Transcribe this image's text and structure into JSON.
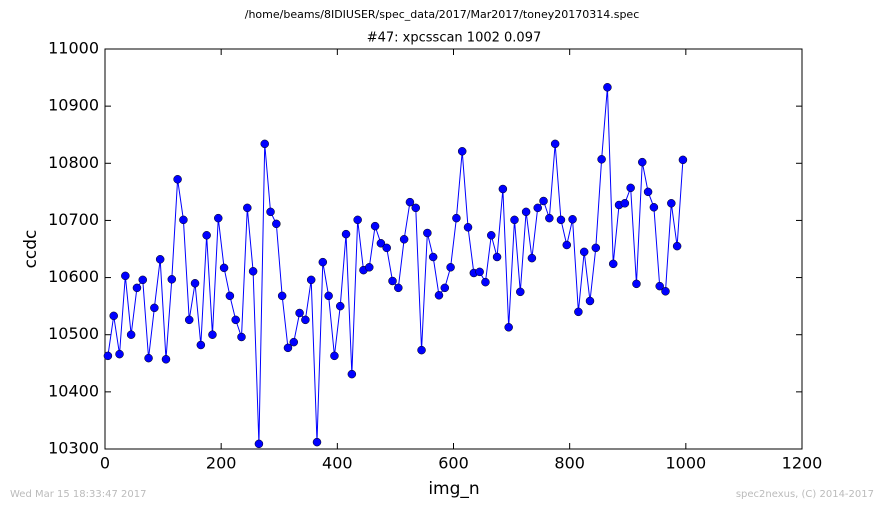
{
  "chart_data": {
    "type": "line",
    "suptitle": "/home/beams/8IDIUSER/spec_data/2017/Mar2017/toney20170314.spec",
    "title": "#47: xpcsscan 1002 0.097",
    "x_label": "img_n",
    "y_label": "ccdc",
    "footer_left": "Wed Mar 15 18:33:47 2017",
    "footer_right": "spec2nexus, (C) 2014-2017",
    "color": "#0000ff",
    "xlim": [
      0,
      1200
    ],
    "xticks": [
      0,
      200,
      400,
      600,
      800,
      1000,
      1200
    ],
    "ylim": [
      10300,
      11000
    ],
    "yticks": [
      10300,
      10400,
      10500,
      10600,
      10700,
      10800,
      10900,
      11000
    ],
    "x": [
      5,
      15,
      25,
      35,
      45,
      55,
      65,
      75,
      85,
      95,
      105,
      115,
      125,
      135,
      145,
      155,
      165,
      175,
      185,
      195,
      205,
      215,
      225,
      235,
      245,
      255,
      265,
      275,
      285,
      295,
      305,
      315,
      325,
      335,
      345,
      355,
      365,
      375,
      385,
      395,
      405,
      415,
      425,
      435,
      445,
      455,
      465,
      475,
      485,
      495,
      505,
      515,
      525,
      535,
      545,
      555,
      565,
      575,
      585,
      595,
      605,
      615,
      625,
      635,
      645,
      655,
      665,
      675,
      685,
      695,
      705,
      715,
      725,
      735,
      745,
      755,
      765,
      775,
      785,
      795,
      805,
      815,
      825,
      835,
      845,
      855,
      865,
      875,
      885,
      895,
      905,
      915,
      925,
      935,
      945,
      955,
      965,
      975,
      985,
      995
    ],
    "values": [
      10463,
      10533,
      10466,
      10603,
      10500,
      10582,
      10596,
      10459,
      10547,
      10632,
      10457,
      10597,
      10772,
      10701,
      10526,
      10590,
      10482,
      10674,
      10500,
      10704,
      10617,
      10568,
      10526,
      10496,
      10722,
      10611,
      10309,
      10834,
      10715,
      10694,
      10568,
      10477,
      10487,
      10538,
      10526,
      10596,
      10312,
      10627,
      10568,
      10463,
      10550,
      10676,
      10431,
      10701,
      10613,
      10618,
      10690,
      10660,
      10652,
      10594,
      10582,
      10667,
      10732,
      10722,
      10473,
      10678,
      10636,
      10569,
      10582,
      10618,
      10704,
      10821,
      10688,
      10608,
      10610,
      10592,
      10674,
      10636,
      10755,
      10513,
      10701,
      10575,
      10715,
      10634,
      10722,
      10734,
      10704,
      10834,
      10701,
      10657,
      10702,
      10540,
      10645,
      10559,
      10652,
      10807,
      10933,
      10624,
      10727,
      10730,
      10757,
      10589,
      10802,
      10750,
      10723,
      10585,
      10576,
      10730,
      10655,
      10806
    ]
  }
}
